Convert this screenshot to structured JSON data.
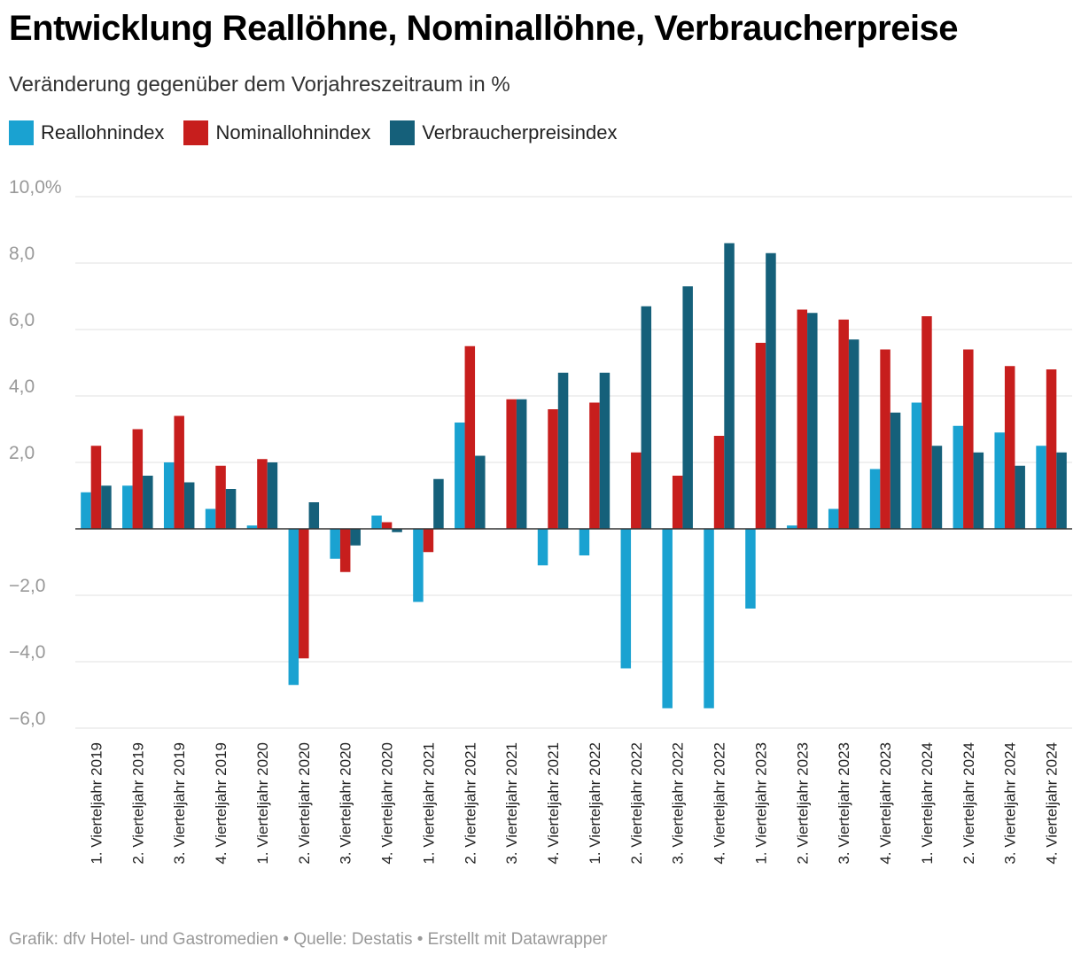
{
  "header": {
    "title": "Entwicklung Reallöhne, Nominallöhne, Verbraucherpreise",
    "subtitle": "Veränderung gegenüber dem Vorjahreszeitraum in %"
  },
  "footer": {
    "text": "Grafik: dfv Hotel- und Gastromedien • Quelle: Destatis • Erstellt mit Datawrapper"
  },
  "colors": {
    "real": "#1aa2d1",
    "nominal": "#c71e1d",
    "cpi": "#15607a",
    "grid": "#e0e0e0",
    "tick_text": "#999999"
  },
  "chart_data": {
    "type": "bar",
    "title": "Entwicklung Reallöhne, Nominallöhne, Verbraucherpreise",
    "subtitle": "Veränderung gegenüber dem Vorjahreszeitraum in %",
    "legend_placement": "top-left",
    "grid": true,
    "ylim": [
      -6,
      10
    ],
    "yticks": [
      10,
      8,
      6,
      4,
      2,
      0,
      -2,
      -4,
      -6
    ],
    "ytick_labels": [
      "10,0%",
      "8,0",
      "6,0",
      "4,0",
      "2,0",
      "",
      "−2,0",
      "−4,0",
      "−6,0"
    ],
    "categories": [
      "1. Vierteljahr 2019",
      "2. Vierteljahr 2019",
      "3. Vierteljahr 2019",
      "4. Vierteljahr 2019",
      "1. Vierteljahr 2020",
      "2. Vierteljahr 2020",
      "3. Vierteljahr 2020",
      "4. Vierteljahr 2020",
      "1. Vierteljahr 2021",
      "2. Vierteljahr 2021",
      "3. Vierteljahr 2021",
      "4. Vierteljahr 2021",
      "1. Vierteljahr 2022",
      "2. Vierteljahr 2022",
      "3. Vierteljahr 2022",
      "4. Vierteljahr 2022",
      "1. Vierteljahr 2023",
      "2. Vierteljahr 2023",
      "3. Vierteljahr 2023",
      "4. Vierteljahr 2023",
      "1. Vierteljahr 2024",
      "2. Vierteljahr 2024",
      "3. Vierteljahr 2024",
      "4. Vierteljahr 2024"
    ],
    "series": [
      {
        "name": "Reallohnindex",
        "color": "#1aa2d1",
        "values": [
          1.1,
          1.3,
          2.0,
          0.6,
          0.1,
          -4.7,
          -0.9,
          0.4,
          -2.2,
          3.2,
          0.0,
          -1.1,
          -0.8,
          -4.2,
          -5.4,
          -5.4,
          -2.4,
          0.1,
          0.6,
          1.8,
          3.8,
          3.1,
          2.9,
          2.5
        ]
      },
      {
        "name": "Nominallohnindex",
        "color": "#c71e1d",
        "values": [
          2.5,
          3.0,
          3.4,
          1.9,
          2.1,
          -3.9,
          -1.3,
          0.2,
          -0.7,
          5.5,
          3.9,
          3.6,
          3.8,
          2.3,
          1.6,
          2.8,
          5.6,
          6.6,
          6.3,
          5.4,
          6.4,
          5.4,
          4.9,
          4.8
        ]
      },
      {
        "name": "Verbraucherpreisindex",
        "color": "#15607a",
        "values": [
          1.3,
          1.6,
          1.4,
          1.2,
          2.0,
          0.8,
          -0.5,
          -0.1,
          1.5,
          2.2,
          3.9,
          4.7,
          4.7,
          6.7,
          7.3,
          8.6,
          8.3,
          6.5,
          5.7,
          3.5,
          2.5,
          2.3,
          1.9,
          2.3
        ]
      }
    ]
  }
}
